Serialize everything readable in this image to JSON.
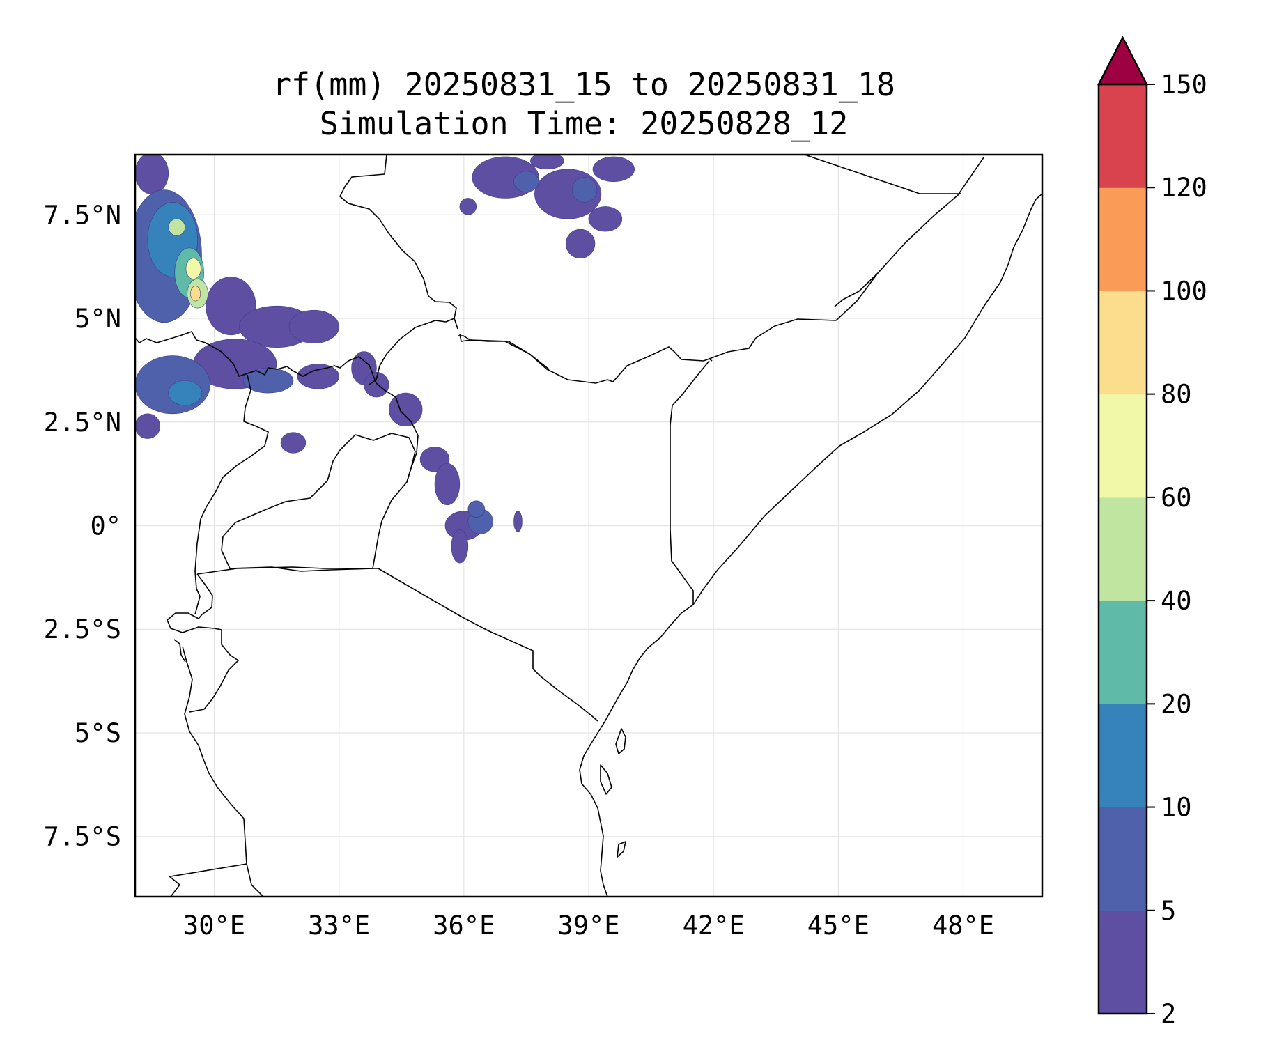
{
  "title": {
    "line1": "rf(mm) 20250831_15 to 20250831_18",
    "line2": "Simulation Time: 20250828_12"
  },
  "map": {
    "extent": {
      "lon_min": 28.1,
      "lon_max": 49.9,
      "lat_min": -8.95,
      "lat_max": 8.95
    },
    "x_ticks": [
      {
        "lon": 30,
        "label": "30°E"
      },
      {
        "lon": 33,
        "label": "33°E"
      },
      {
        "lon": 36,
        "label": "36°E"
      },
      {
        "lon": 39,
        "label": "39°E"
      },
      {
        "lon": 42,
        "label": "42°E"
      },
      {
        "lon": 45,
        "label": "45°E"
      },
      {
        "lon": 48,
        "label": "48°E"
      }
    ],
    "y_ticks": [
      {
        "lat": 7.5,
        "label": "7.5°N"
      },
      {
        "lat": 5,
        "label": "5°N"
      },
      {
        "lat": 2.5,
        "label": "2.5°N"
      },
      {
        "lat": 0,
        "label": "0°"
      },
      {
        "lat": -2.5,
        "label": "2.5°S"
      },
      {
        "lat": -5,
        "label": "5°S"
      },
      {
        "lat": -7.5,
        "label": "7.5°S"
      }
    ],
    "gridlines": true,
    "coastline_color": "#000000",
    "border_color": "#000000",
    "rain_cells": [
      {
        "lon": 28.8,
        "lat": 6.5,
        "rlon": 0.9,
        "rlat": 1.6,
        "mm": 5
      },
      {
        "lon": 29.0,
        "lat": 6.9,
        "rlon": 0.6,
        "rlat": 0.9,
        "mm": 10
      },
      {
        "lon": 29.4,
        "lat": 6.1,
        "rlon": 0.35,
        "rlat": 0.6,
        "mm": 20
      },
      {
        "lon": 29.6,
        "lat": 5.6,
        "rlon": 0.25,
        "rlat": 0.35,
        "mm": 40
      },
      {
        "lon": 29.5,
        "lat": 6.2,
        "rlon": 0.18,
        "rlat": 0.25,
        "mm": 60
      },
      {
        "lon": 29.55,
        "lat": 5.6,
        "rlon": 0.12,
        "rlat": 0.18,
        "mm": 80
      },
      {
        "lon": 29.1,
        "lat": 7.2,
        "rlon": 0.2,
        "rlat": 0.2,
        "mm": 40
      },
      {
        "lon": 28.5,
        "lat": 8.5,
        "rlon": 0.4,
        "rlat": 0.5,
        "mm": 2
      },
      {
        "lon": 30.4,
        "lat": 5.3,
        "rlon": 0.6,
        "rlat": 0.7,
        "mm": 2
      },
      {
        "lon": 31.5,
        "lat": 4.8,
        "rlon": 0.9,
        "rlat": 0.5,
        "mm": 2
      },
      {
        "lon": 32.4,
        "lat": 4.8,
        "rlon": 0.6,
        "rlat": 0.4,
        "mm": 2
      },
      {
        "lon": 29.0,
        "lat": 3.4,
        "rlon": 0.9,
        "rlat": 0.7,
        "mm": 5
      },
      {
        "lon": 29.3,
        "lat": 3.2,
        "rlon": 0.4,
        "rlat": 0.3,
        "mm": 10
      },
      {
        "lon": 30.5,
        "lat": 3.9,
        "rlon": 1.0,
        "rlat": 0.6,
        "mm": 2
      },
      {
        "lon": 31.3,
        "lat": 3.5,
        "rlon": 0.6,
        "rlat": 0.3,
        "mm": 5
      },
      {
        "lon": 32.5,
        "lat": 3.6,
        "rlon": 0.5,
        "rlat": 0.3,
        "mm": 2
      },
      {
        "lon": 33.6,
        "lat": 3.8,
        "rlon": 0.3,
        "rlat": 0.4,
        "mm": 2
      },
      {
        "lon": 34.6,
        "lat": 2.8,
        "rlon": 0.4,
        "rlat": 0.4,
        "mm": 2
      },
      {
        "lon": 33.9,
        "lat": 3.4,
        "rlon": 0.3,
        "rlat": 0.3,
        "mm": 2
      },
      {
        "lon": 31.9,
        "lat": 2.0,
        "rlon": 0.3,
        "rlat": 0.25,
        "mm": 2
      },
      {
        "lon": 28.4,
        "lat": 2.4,
        "rlon": 0.3,
        "rlat": 0.3,
        "mm": 2
      },
      {
        "lon": 35.3,
        "lat": 1.6,
        "rlon": 0.35,
        "rlat": 0.3,
        "mm": 2
      },
      {
        "lon": 35.6,
        "lat": 1.0,
        "rlon": 0.3,
        "rlat": 0.5,
        "mm": 2
      },
      {
        "lon": 36.0,
        "lat": 0.0,
        "rlon": 0.45,
        "rlat": 0.35,
        "mm": 2
      },
      {
        "lon": 36.4,
        "lat": 0.1,
        "rlon": 0.3,
        "rlat": 0.3,
        "mm": 5
      },
      {
        "lon": 35.9,
        "lat": -0.5,
        "rlon": 0.2,
        "rlat": 0.4,
        "mm": 2
      },
      {
        "lon": 36.3,
        "lat": 0.4,
        "rlon": 0.2,
        "rlat": 0.2,
        "mm": 5
      },
      {
        "lon": 37.3,
        "lat": 0.1,
        "rlon": 0.1,
        "rlat": 0.25,
        "mm": 2
      },
      {
        "lon": 36.1,
        "lat": 7.7,
        "rlon": 0.2,
        "rlat": 0.2,
        "mm": 2
      },
      {
        "lon": 37.0,
        "lat": 8.4,
        "rlon": 0.8,
        "rlat": 0.5,
        "mm": 2
      },
      {
        "lon": 37.5,
        "lat": 8.3,
        "rlon": 0.3,
        "rlat": 0.25,
        "mm": 5
      },
      {
        "lon": 38.5,
        "lat": 8.0,
        "rlon": 0.8,
        "rlat": 0.6,
        "mm": 2
      },
      {
        "lon": 38.9,
        "lat": 8.1,
        "rlon": 0.3,
        "rlat": 0.3,
        "mm": 5
      },
      {
        "lon": 39.4,
        "lat": 7.4,
        "rlon": 0.4,
        "rlat": 0.3,
        "mm": 2
      },
      {
        "lon": 38.8,
        "lat": 6.8,
        "rlon": 0.35,
        "rlat": 0.35,
        "mm": 2
      },
      {
        "lon": 39.6,
        "lat": 8.6,
        "rlon": 0.5,
        "rlat": 0.3,
        "mm": 2
      },
      {
        "lon": 38.0,
        "lat": 8.8,
        "rlon": 0.4,
        "rlat": 0.2,
        "mm": 2
      }
    ]
  },
  "colorbar": {
    "levels": [
      2,
      5,
      10,
      20,
      40,
      60,
      80,
      100,
      120,
      150
    ],
    "labels": [
      "2",
      "5",
      "10",
      "20",
      "40",
      "60",
      "80",
      "100",
      "120",
      "150"
    ],
    "colors": [
      "#5e4fa2",
      "#4f61aa",
      "#3682ba",
      "#5fbaa8",
      "#bfe5a0",
      "#f1f9a9",
      "#fcdd8e",
      "#fa9b58",
      "#d8434e"
    ],
    "extend_color": "#9e0142",
    "extend": "max"
  }
}
